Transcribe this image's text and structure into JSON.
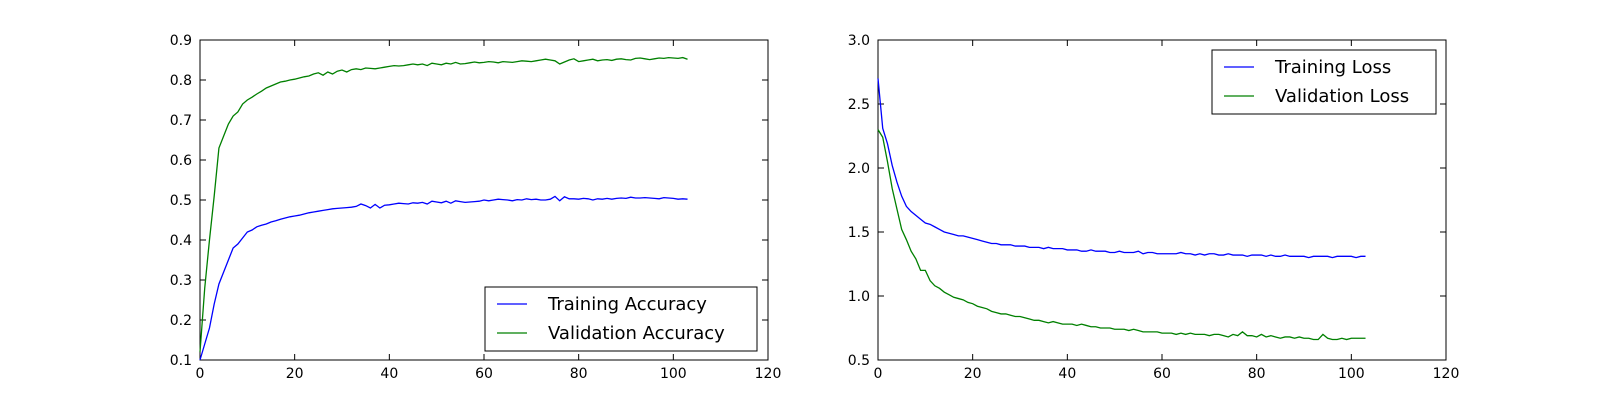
{
  "chart_data": [
    {
      "type": "line",
      "title": "",
      "xlabel": "",
      "ylabel": "",
      "xlim": [
        0,
        120
      ],
      "ylim": [
        0.1,
        0.9
      ],
      "x_ticks": [
        "0",
        "20",
        "40",
        "60",
        "80",
        "100",
        "120"
      ],
      "y_ticks": [
        "0.1",
        "0.2",
        "0.3",
        "0.4",
        "0.5",
        "0.6",
        "0.7",
        "0.8",
        "0.9"
      ],
      "legend_placement": "lower-right",
      "grid": false,
      "series": [
        {
          "name": "Training Accuracy",
          "color": "#0000ff",
          "x": [
            0,
            1,
            2,
            3,
            4,
            5,
            6,
            7,
            8,
            9,
            10,
            11,
            12,
            13,
            14,
            15,
            16,
            17,
            18,
            19,
            20,
            21,
            22,
            23,
            24,
            25,
            26,
            27,
            28,
            29,
            30,
            31,
            32,
            33,
            34,
            35,
            36,
            37,
            38,
            39,
            40,
            41,
            42,
            43,
            44,
            45,
            46,
            47,
            48,
            49,
            50,
            51,
            52,
            53,
            54,
            55,
            56,
            57,
            58,
            59,
            60,
            61,
            62,
            63,
            64,
            65,
            66,
            67,
            68,
            69,
            70,
            71,
            72,
            73,
            74,
            75,
            76,
            77,
            78,
            79,
            80,
            81,
            82,
            83,
            84,
            85,
            86,
            87,
            88,
            89,
            90,
            91,
            92,
            93,
            94,
            95,
            96,
            97,
            98,
            99,
            100,
            101,
            102,
            103
          ],
          "values": [
            0.1,
            0.14,
            0.18,
            0.24,
            0.29,
            0.32,
            0.35,
            0.38,
            0.39,
            0.405,
            0.42,
            0.425,
            0.433,
            0.437,
            0.44,
            0.445,
            0.448,
            0.452,
            0.455,
            0.458,
            0.46,
            0.462,
            0.465,
            0.468,
            0.47,
            0.472,
            0.474,
            0.476,
            0.478,
            0.479,
            0.48,
            0.481,
            0.482,
            0.484,
            0.49,
            0.486,
            0.48,
            0.489,
            0.48,
            0.487,
            0.488,
            0.49,
            0.492,
            0.491,
            0.49,
            0.493,
            0.492,
            0.494,
            0.49,
            0.497,
            0.495,
            0.493,
            0.497,
            0.492,
            0.498,
            0.496,
            0.494,
            0.495,
            0.496,
            0.497,
            0.5,
            0.498,
            0.5,
            0.502,
            0.501,
            0.5,
            0.498,
            0.501,
            0.5,
            0.503,
            0.501,
            0.502,
            0.5,
            0.5,
            0.502,
            0.509,
            0.498,
            0.508,
            0.503,
            0.503,
            0.502,
            0.504,
            0.503,
            0.5,
            0.503,
            0.502,
            0.504,
            0.502,
            0.504,
            0.505,
            0.504,
            0.507,
            0.505,
            0.505,
            0.506,
            0.505,
            0.504,
            0.503,
            0.506,
            0.505,
            0.504,
            0.502,
            0.503,
            0.502
          ]
        },
        {
          "name": "Validation Accuracy",
          "color": "#008000",
          "x": [
            0,
            1,
            2,
            3,
            4,
            5,
            6,
            7,
            8,
            9,
            10,
            11,
            12,
            13,
            14,
            15,
            16,
            17,
            18,
            19,
            20,
            21,
            22,
            23,
            24,
            25,
            26,
            27,
            28,
            29,
            30,
            31,
            32,
            33,
            34,
            35,
            36,
            37,
            38,
            39,
            40,
            41,
            42,
            43,
            44,
            45,
            46,
            47,
            48,
            49,
            50,
            51,
            52,
            53,
            54,
            55,
            56,
            57,
            58,
            59,
            60,
            61,
            62,
            63,
            64,
            65,
            66,
            67,
            68,
            69,
            70,
            71,
            72,
            73,
            74,
            75,
            76,
            77,
            78,
            79,
            80,
            81,
            82,
            83,
            84,
            85,
            86,
            87,
            88,
            89,
            90,
            91,
            92,
            93,
            94,
            95,
            96,
            97,
            98,
            99,
            100,
            101,
            102,
            103
          ],
          "values": [
            0.12,
            0.28,
            0.4,
            0.51,
            0.63,
            0.66,
            0.69,
            0.71,
            0.72,
            0.74,
            0.75,
            0.757,
            0.765,
            0.772,
            0.78,
            0.785,
            0.79,
            0.795,
            0.797,
            0.8,
            0.802,
            0.805,
            0.808,
            0.81,
            0.815,
            0.818,
            0.812,
            0.82,
            0.815,
            0.822,
            0.825,
            0.82,
            0.826,
            0.828,
            0.826,
            0.83,
            0.829,
            0.828,
            0.83,
            0.832,
            0.834,
            0.836,
            0.835,
            0.836,
            0.838,
            0.84,
            0.838,
            0.84,
            0.836,
            0.842,
            0.84,
            0.838,
            0.842,
            0.84,
            0.844,
            0.84,
            0.841,
            0.843,
            0.845,
            0.843,
            0.844,
            0.846,
            0.845,
            0.843,
            0.846,
            0.845,
            0.844,
            0.846,
            0.848,
            0.847,
            0.846,
            0.848,
            0.85,
            0.852,
            0.85,
            0.848,
            0.84,
            0.845,
            0.85,
            0.853,
            0.846,
            0.848,
            0.85,
            0.852,
            0.848,
            0.85,
            0.851,
            0.849,
            0.852,
            0.853,
            0.851,
            0.85,
            0.854,
            0.855,
            0.853,
            0.851,
            0.853,
            0.855,
            0.854,
            0.856,
            0.855,
            0.854,
            0.856,
            0.852
          ]
        }
      ]
    },
    {
      "type": "line",
      "title": "",
      "xlabel": "",
      "ylabel": "",
      "xlim": [
        0,
        120
      ],
      "ylim": [
        0.5,
        3.0
      ],
      "x_ticks": [
        "0",
        "20",
        "40",
        "60",
        "80",
        "100",
        "120"
      ],
      "y_ticks": [
        "0.5",
        "1.0",
        "1.5",
        "2.0",
        "2.5",
        "3.0"
      ],
      "legend_placement": "upper-right",
      "grid": false,
      "series": [
        {
          "name": "Training Loss",
          "color": "#0000ff",
          "x": [
            0,
            1,
            2,
            3,
            4,
            5,
            6,
            7,
            8,
            9,
            10,
            11,
            12,
            13,
            14,
            15,
            16,
            17,
            18,
            19,
            20,
            21,
            22,
            23,
            24,
            25,
            26,
            27,
            28,
            29,
            30,
            31,
            32,
            33,
            34,
            35,
            36,
            37,
            38,
            39,
            40,
            41,
            42,
            43,
            44,
            45,
            46,
            47,
            48,
            49,
            50,
            51,
            52,
            53,
            54,
            55,
            56,
            57,
            58,
            59,
            60,
            61,
            62,
            63,
            64,
            65,
            66,
            67,
            68,
            69,
            70,
            71,
            72,
            73,
            74,
            75,
            76,
            77,
            78,
            79,
            80,
            81,
            82,
            83,
            84,
            85,
            86,
            87,
            88,
            89,
            90,
            91,
            92,
            93,
            94,
            95,
            96,
            97,
            98,
            99,
            100,
            101,
            102,
            103
          ],
          "values": [
            2.7,
            2.31,
            2.19,
            2.02,
            1.89,
            1.78,
            1.7,
            1.66,
            1.63,
            1.6,
            1.57,
            1.56,
            1.54,
            1.52,
            1.5,
            1.49,
            1.48,
            1.47,
            1.47,
            1.46,
            1.45,
            1.44,
            1.43,
            1.42,
            1.41,
            1.41,
            1.4,
            1.4,
            1.4,
            1.39,
            1.39,
            1.39,
            1.38,
            1.38,
            1.38,
            1.37,
            1.38,
            1.37,
            1.37,
            1.37,
            1.36,
            1.36,
            1.36,
            1.35,
            1.35,
            1.36,
            1.35,
            1.35,
            1.35,
            1.34,
            1.34,
            1.35,
            1.34,
            1.34,
            1.34,
            1.35,
            1.33,
            1.34,
            1.34,
            1.33,
            1.33,
            1.33,
            1.33,
            1.33,
            1.34,
            1.33,
            1.33,
            1.32,
            1.33,
            1.32,
            1.33,
            1.33,
            1.32,
            1.32,
            1.33,
            1.32,
            1.32,
            1.32,
            1.31,
            1.32,
            1.32,
            1.32,
            1.31,
            1.32,
            1.31,
            1.31,
            1.32,
            1.31,
            1.31,
            1.31,
            1.31,
            1.3,
            1.31,
            1.31,
            1.31,
            1.31,
            1.3,
            1.31,
            1.31,
            1.31,
            1.31,
            1.3,
            1.31,
            1.31
          ]
        },
        {
          "name": "Validation Loss",
          "color": "#008000",
          "x": [
            0,
            1,
            2,
            3,
            4,
            5,
            6,
            7,
            8,
            9,
            10,
            11,
            12,
            13,
            14,
            15,
            16,
            17,
            18,
            19,
            20,
            21,
            22,
            23,
            24,
            25,
            26,
            27,
            28,
            29,
            30,
            31,
            32,
            33,
            34,
            35,
            36,
            37,
            38,
            39,
            40,
            41,
            42,
            43,
            44,
            45,
            46,
            47,
            48,
            49,
            50,
            51,
            52,
            53,
            54,
            55,
            56,
            57,
            58,
            59,
            60,
            61,
            62,
            63,
            64,
            65,
            66,
            67,
            68,
            69,
            70,
            71,
            72,
            73,
            74,
            75,
            76,
            77,
            78,
            79,
            80,
            81,
            82,
            83,
            84,
            85,
            86,
            87,
            88,
            89,
            90,
            91,
            92,
            93,
            94,
            95,
            96,
            97,
            98,
            99,
            100,
            101,
            102,
            103
          ],
          "values": [
            2.3,
            2.24,
            2.05,
            1.84,
            1.68,
            1.52,
            1.44,
            1.35,
            1.29,
            1.2,
            1.2,
            1.12,
            1.08,
            1.06,
            1.03,
            1.01,
            0.99,
            0.98,
            0.97,
            0.95,
            0.94,
            0.92,
            0.91,
            0.9,
            0.88,
            0.87,
            0.86,
            0.86,
            0.85,
            0.84,
            0.84,
            0.83,
            0.82,
            0.81,
            0.81,
            0.8,
            0.79,
            0.8,
            0.79,
            0.78,
            0.78,
            0.78,
            0.77,
            0.78,
            0.77,
            0.76,
            0.76,
            0.75,
            0.75,
            0.75,
            0.74,
            0.74,
            0.74,
            0.73,
            0.74,
            0.73,
            0.72,
            0.72,
            0.72,
            0.72,
            0.71,
            0.71,
            0.71,
            0.7,
            0.71,
            0.7,
            0.71,
            0.7,
            0.7,
            0.7,
            0.69,
            0.7,
            0.7,
            0.69,
            0.68,
            0.7,
            0.69,
            0.72,
            0.69,
            0.69,
            0.68,
            0.7,
            0.68,
            0.69,
            0.68,
            0.67,
            0.68,
            0.68,
            0.67,
            0.68,
            0.67,
            0.67,
            0.66,
            0.66,
            0.7,
            0.67,
            0.66,
            0.66,
            0.67,
            0.66,
            0.67,
            0.67,
            0.67,
            0.67
          ]
        }
      ]
    }
  ]
}
